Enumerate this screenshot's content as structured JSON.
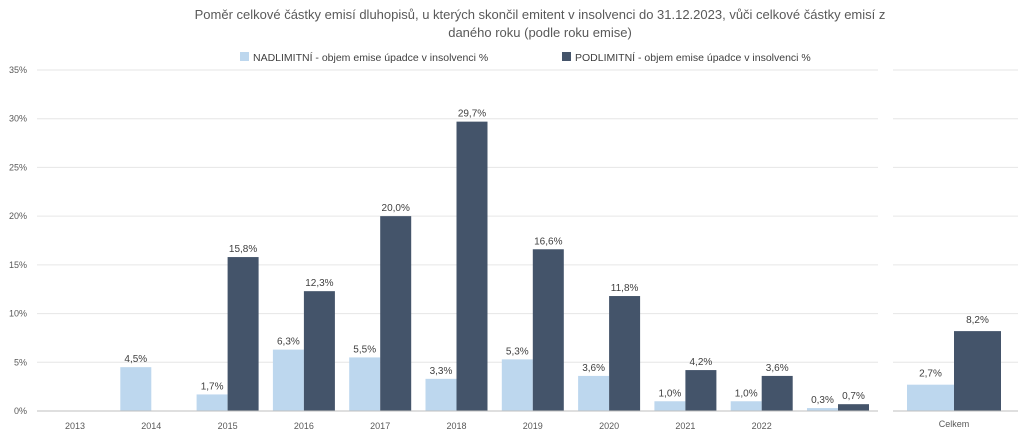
{
  "chart_data": [
    {
      "type": "bar",
      "title_line1": "Poměr celkové částky emisí dluhopisů, u kterých skončil emitent v insolvenci do 31.12.2023, vůči celkové částky emisí z",
      "title_line2": "daného roku (podle roku emise)",
      "categories": [
        "2013",
        "2014",
        "2015",
        "2016",
        "2017",
        "2018",
        "2019",
        "2020",
        "2021",
        "2022",
        ""
      ],
      "series": [
        {
          "name": "NADLIMITNÍ  - objem emise úpadce v insolvenci %",
          "color": "#bdd7ee",
          "values": [
            null,
            4.5,
            1.7,
            6.3,
            5.5,
            3.3,
            5.3,
            3.6,
            1.0,
            1.0,
            0.3
          ],
          "labels": [
            "",
            "4,5%",
            "1,7%",
            "6,3%",
            "5,5%",
            "3,3%",
            "5,3%",
            "3,6%",
            "1,0%",
            "1,0%",
            "0,3%"
          ]
        },
        {
          "name": "PODLIMITNÍ  - objem emise úpadce v insolvenci %",
          "color": "#44546a",
          "values": [
            null,
            null,
            15.8,
            12.3,
            20.0,
            29.7,
            16.6,
            11.8,
            4.2,
            3.6,
            0.7
          ],
          "labels": [
            "",
            "",
            "15,8%",
            "12,3%",
            "20,0%",
            "29,7%",
            "16,6%",
            "11,8%",
            "4,2%",
            "3,6%",
            "0,7%"
          ]
        }
      ],
      "ylim": [
        0,
        35
      ],
      "yticks": [
        0,
        5,
        10,
        15,
        20,
        25,
        30,
        35
      ],
      "ytick_labels": [
        "0%",
        "5%",
        "10%",
        "15%",
        "20%",
        "25%",
        "30%",
        "35%"
      ],
      "grid": true,
      "legend_position": "top"
    },
    {
      "type": "bar",
      "categories": [
        "Celkem"
      ],
      "series": [
        {
          "name": "NADLIMITNÍ  - objem emise úpadce v insolvenci %",
          "color": "#bdd7ee",
          "values": [
            2.7
          ],
          "labels": [
            "2,7%"
          ]
        },
        {
          "name": "PODLIMITNÍ  - objem emise úpadce v insolvenci %",
          "color": "#44546a",
          "values": [
            8.2
          ],
          "labels": [
            "8,2%"
          ]
        }
      ],
      "ylim": [
        0,
        35
      ],
      "grid": true
    }
  ]
}
